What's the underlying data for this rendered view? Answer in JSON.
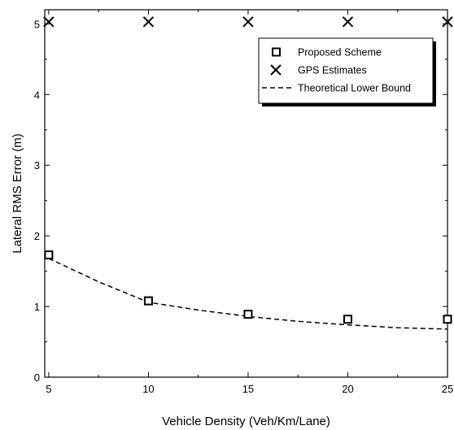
{
  "chart_data": {
    "type": "scatter",
    "title": "",
    "xlabel": "Vehicle Density (Veh/Km/Lane)",
    "ylabel": "Lateral RMS Error (m)",
    "xlim": [
      4.8,
      25
    ],
    "ylim": [
      0,
      5.2
    ],
    "xticks": [
      5,
      10,
      15,
      20,
      25
    ],
    "yticks": [
      0,
      1,
      2,
      3,
      4,
      5
    ],
    "grid": false,
    "legend_position": "top-right",
    "series": [
      {
        "name": "Proposed Scheme",
        "marker": "square",
        "x": [
          5,
          10,
          15,
          20,
          25
        ],
        "y": [
          1.73,
          1.08,
          0.89,
          0.82,
          0.82
        ]
      },
      {
        "name": "GPS Estimates",
        "marker": "x",
        "x": [
          5,
          10,
          15,
          20,
          25
        ],
        "y": [
          5.03,
          5.03,
          5.03,
          5.03,
          5.03
        ]
      },
      {
        "name": "Theoretical Lower Bound",
        "line": "dashed",
        "x": [
          5,
          7.5,
          10,
          12.5,
          15,
          17.5,
          20,
          22.5,
          25
        ],
        "y": [
          1.68,
          1.35,
          1.06,
          0.95,
          0.86,
          0.79,
          0.74,
          0.7,
          0.68
        ]
      }
    ]
  }
}
